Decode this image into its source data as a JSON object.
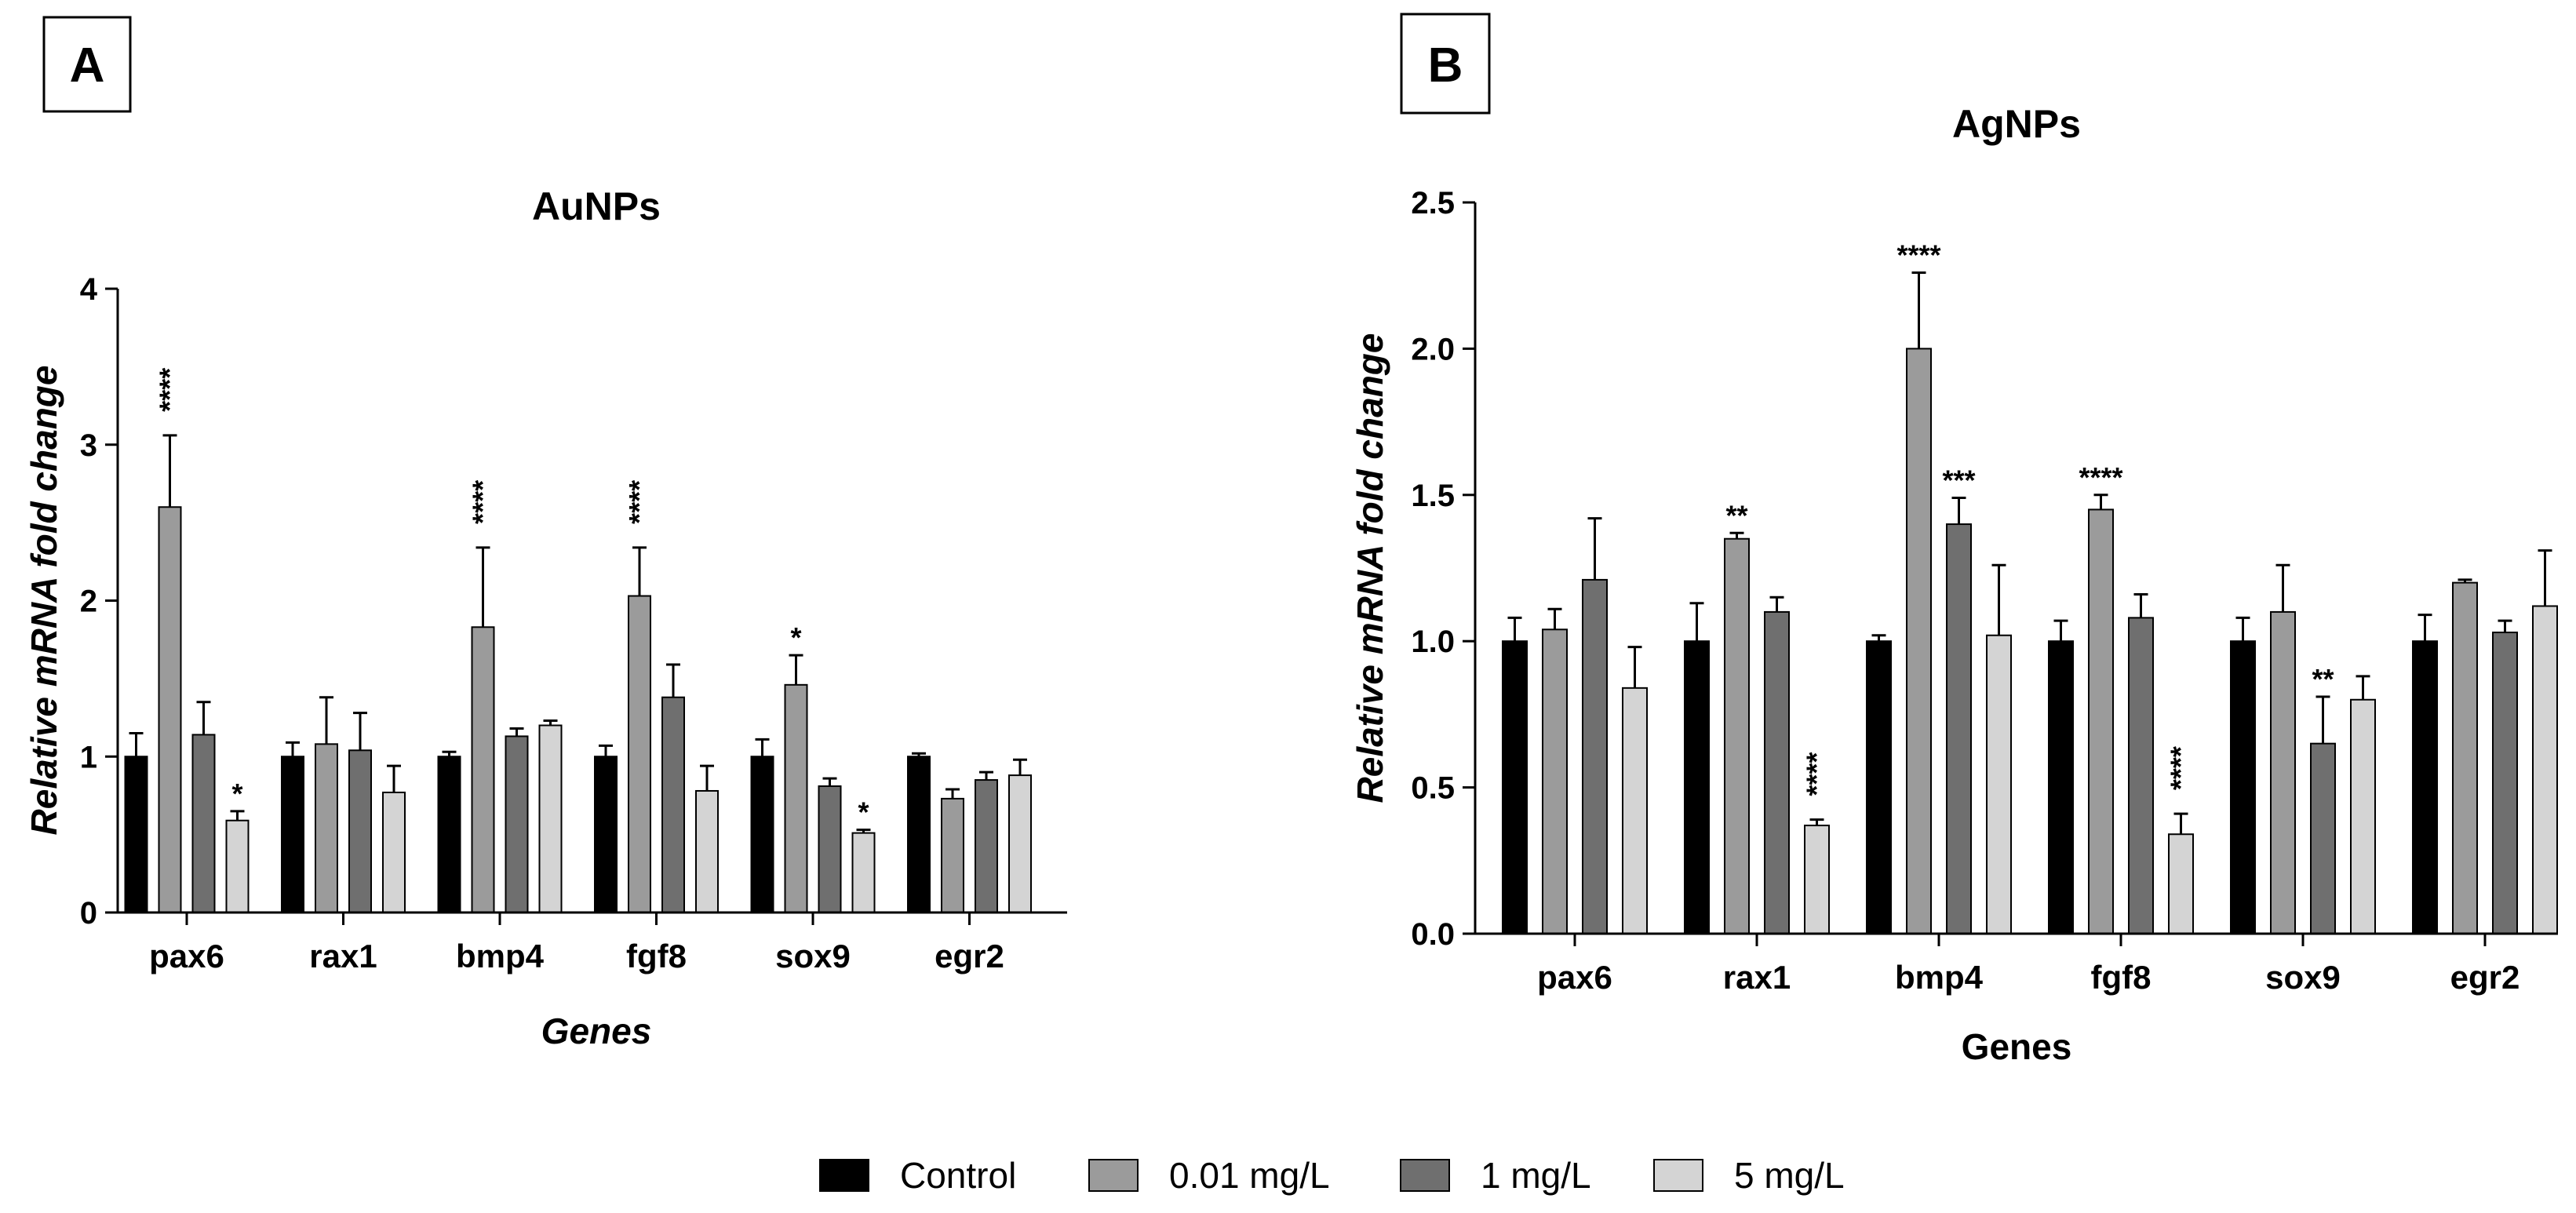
{
  "legend": [
    {
      "name": "Control",
      "color": "#000000"
    },
    {
      "name": "0.01 mg/L",
      "color": "#9b9b9b"
    },
    {
      "name": "1 mg/L",
      "color": "#6f6f6f"
    },
    {
      "name": "5 mg/L",
      "color": "#d4d4d4"
    }
  ],
  "chart_data": [
    {
      "panel": "A",
      "type": "bar",
      "title": "AuNPs",
      "xlabel": "Genes",
      "ylabel": "Relative mRNA fold change",
      "ylim": [
        0,
        4
      ],
      "yticks": [
        "0",
        "1",
        "2",
        "3",
        "4"
      ],
      "categories": [
        "pax6",
        "rax1",
        "bmp4",
        "fgf8",
        "sox9",
        "egr2"
      ],
      "series": [
        {
          "name": "Control",
          "values": [
            1.0,
            1.0,
            1.0,
            1.0,
            1.0,
            1.0
          ],
          "errors": [
            0.15,
            0.09,
            0.03,
            0.07,
            0.11,
            0.02
          ],
          "significance": [
            "",
            "",
            "",
            "",
            "",
            ""
          ]
        },
        {
          "name": "0.01 mg/L",
          "values": [
            2.6,
            1.08,
            1.83,
            2.03,
            1.46,
            0.73
          ],
          "errors": [
            0.46,
            0.3,
            0.51,
            0.31,
            0.19,
            0.06
          ],
          "significance": [
            "****",
            "",
            "****",
            "****",
            "*",
            ""
          ]
        },
        {
          "name": "1 mg/L",
          "values": [
            1.14,
            1.04,
            1.13,
            1.38,
            0.81,
            0.85
          ],
          "errors": [
            0.21,
            0.24,
            0.05,
            0.21,
            0.05,
            0.05
          ],
          "significance": [
            "",
            "",
            "",
            "",
            "",
            ""
          ]
        },
        {
          "name": "5 mg/L",
          "values": [
            0.59,
            0.77,
            1.2,
            0.78,
            0.51,
            0.88
          ],
          "errors": [
            0.06,
            0.17,
            0.03,
            0.16,
            0.02,
            0.1
          ],
          "significance": [
            "*",
            "",
            "",
            "",
            "*",
            ""
          ]
        }
      ]
    },
    {
      "panel": "B",
      "type": "bar",
      "title": "AgNPs",
      "xlabel": "Genes",
      "ylabel": "Relative mRNA fold change",
      "ylim": [
        0,
        2.5
      ],
      "yticks": [
        "0.0",
        "0.5",
        "1.0",
        "1.5",
        "2.0",
        "2.5"
      ],
      "categories": [
        "pax6",
        "rax1",
        "bmp4",
        "fgf8",
        "sox9",
        "egr2"
      ],
      "series": [
        {
          "name": "Control",
          "values": [
            1.0,
            1.0,
            1.0,
            1.0,
            1.0,
            1.0
          ],
          "errors": [
            0.08,
            0.13,
            0.02,
            0.07,
            0.08,
            0.09
          ],
          "significance": [
            "",
            "",
            "",
            "",
            "",
            ""
          ]
        },
        {
          "name": "0.01 mg/L",
          "values": [
            1.04,
            1.35,
            2.0,
            1.45,
            1.1,
            1.2
          ],
          "errors": [
            0.07,
            0.02,
            0.26,
            0.05,
            0.16,
            0.01
          ],
          "significance": [
            "",
            "**",
            "****",
            "****",
            "",
            ""
          ]
        },
        {
          "name": "1 mg/L",
          "values": [
            1.21,
            1.1,
            1.4,
            1.08,
            0.65,
            1.03
          ],
          "errors": [
            0.21,
            0.05,
            0.09,
            0.08,
            0.16,
            0.04
          ],
          "significance": [
            "",
            "",
            "***",
            "",
            "**",
            ""
          ]
        },
        {
          "name": "5 mg/L",
          "values": [
            0.84,
            0.37,
            1.02,
            0.34,
            0.8,
            1.12
          ],
          "errors": [
            0.14,
            0.02,
            0.24,
            0.07,
            0.08,
            0.19
          ],
          "significance": [
            "",
            "****",
            "",
            "****",
            "",
            ""
          ]
        }
      ]
    }
  ]
}
